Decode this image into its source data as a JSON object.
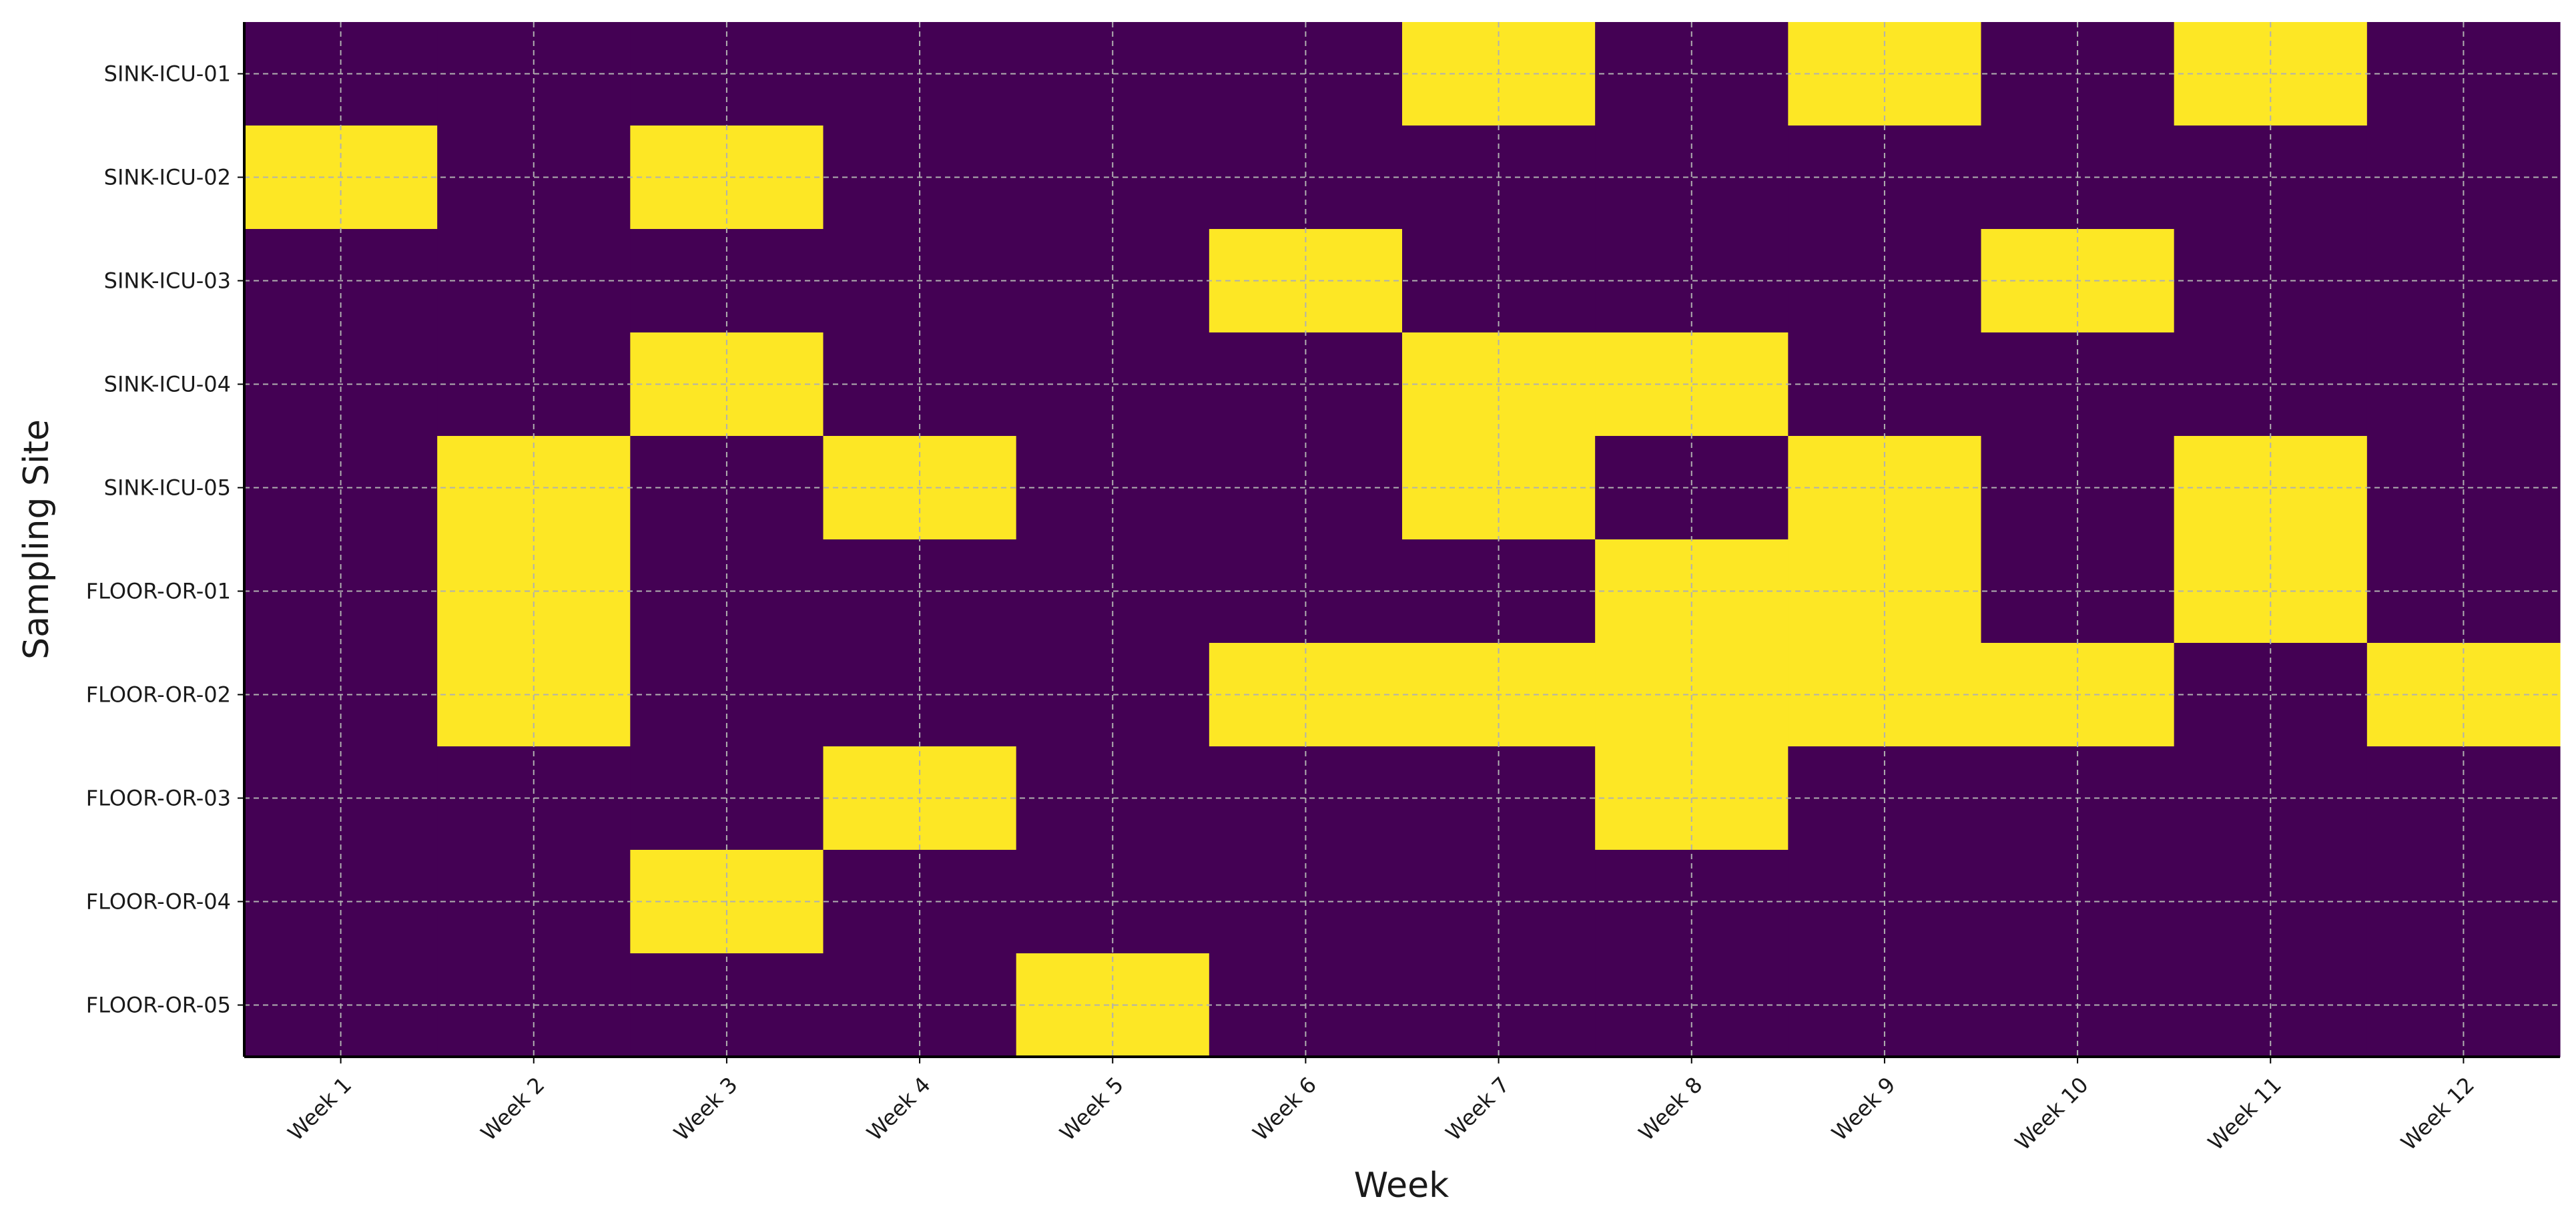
{
  "chart_data": {
    "type": "heatmap",
    "title": "",
    "xlabel": "Week",
    "ylabel": "Sampling Site",
    "x": [
      "Week 1",
      "Week 2",
      "Week 3",
      "Week 4",
      "Week 5",
      "Week 6",
      "Week 7",
      "Week 8",
      "Week 9",
      "Week 10",
      "Week 11",
      "Week 12"
    ],
    "y": [
      "SINK-ICU-01",
      "SINK-ICU-02",
      "SINK-ICU-03",
      "SINK-ICU-04",
      "SINK-ICU-05",
      "FLOOR-OR-01",
      "FLOOR-OR-02",
      "FLOOR-OR-03",
      "FLOOR-OR-04",
      "FLOOR-OR-05"
    ],
    "values": [
      [
        0,
        0,
        0,
        0,
        0,
        0,
        1,
        0,
        1,
        0,
        1,
        0
      ],
      [
        1,
        0,
        1,
        0,
        0,
        0,
        0,
        0,
        0,
        0,
        0,
        0
      ],
      [
        0,
        0,
        0,
        0,
        0,
        1,
        0,
        0,
        0,
        1,
        0,
        0
      ],
      [
        0,
        0,
        1,
        0,
        0,
        0,
        1,
        1,
        0,
        0,
        0,
        0
      ],
      [
        0,
        1,
        0,
        1,
        0,
        0,
        1,
        0,
        1,
        0,
        1,
        0
      ],
      [
        0,
        1,
        0,
        0,
        0,
        0,
        0,
        1,
        1,
        0,
        1,
        0
      ],
      [
        0,
        1,
        0,
        0,
        0,
        1,
        1,
        1,
        1,
        1,
        0,
        1
      ],
      [
        0,
        0,
        0,
        1,
        0,
        0,
        0,
        1,
        0,
        0,
        0,
        0
      ],
      [
        0,
        0,
        1,
        0,
        0,
        0,
        0,
        0,
        0,
        0,
        0,
        0
      ],
      [
        0,
        0,
        0,
        0,
        1,
        0,
        0,
        0,
        0,
        0,
        0,
        0
      ]
    ],
    "zlim": [
      0,
      1
    ],
    "colors": {
      "low": "#440154",
      "high": "#fde725"
    },
    "grid": true,
    "grid_style": "dashed",
    "legend": "none"
  }
}
